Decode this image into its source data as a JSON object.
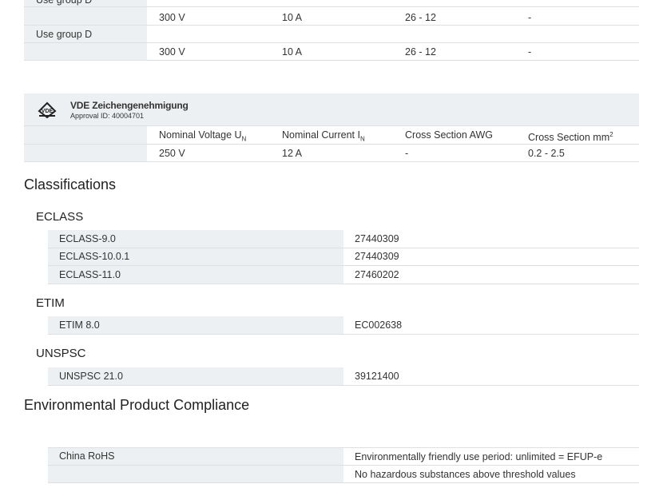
{
  "approvals_top": {
    "rows": [
      {
        "group": "Use group D",
        "values": [
          "300 V",
          "10 A",
          "26 - 12",
          "-"
        ]
      },
      {
        "group": "Use group D",
        "values": [
          "300 V",
          "10 A",
          "26 - 12",
          "-"
        ]
      }
    ]
  },
  "vde": {
    "title": "VDE Zeichengenehmigung",
    "approval_id": "Approval ID: 40004701",
    "headers": [
      {
        "text": "Nominal Voltage U",
        "sub": "N"
      },
      {
        "text": "Nominal Current I",
        "sub": "N"
      },
      {
        "text": "Cross Section AWG"
      },
      {
        "text": "Cross Section mm",
        "sup": "2"
      }
    ],
    "values": [
      "250 V",
      "12 A",
      "-",
      "0.2 - 2.5"
    ]
  },
  "classifications": {
    "title": "Classifications",
    "groups": [
      {
        "title": "ECLASS",
        "rows": [
          [
            "ECLASS-9.0",
            "27440309"
          ],
          [
            "ECLASS-10.0.1",
            "27440309"
          ],
          [
            "ECLASS-11.0",
            "27460202"
          ]
        ]
      },
      {
        "title": "ETIM",
        "rows": [
          [
            "ETIM 8.0",
            "EC002638"
          ]
        ]
      },
      {
        "title": "UNSPSC",
        "rows": [
          [
            "UNSPSC 21.0",
            "39121400"
          ]
        ]
      }
    ]
  },
  "environmental": {
    "title": "Environmental Product Compliance",
    "rows": [
      {
        "label": "China RoHS",
        "values": [
          "Environmentally friendly use period: unlimited = EFUP-e",
          "No hazardous substances above threshold values"
        ]
      }
    ]
  }
}
